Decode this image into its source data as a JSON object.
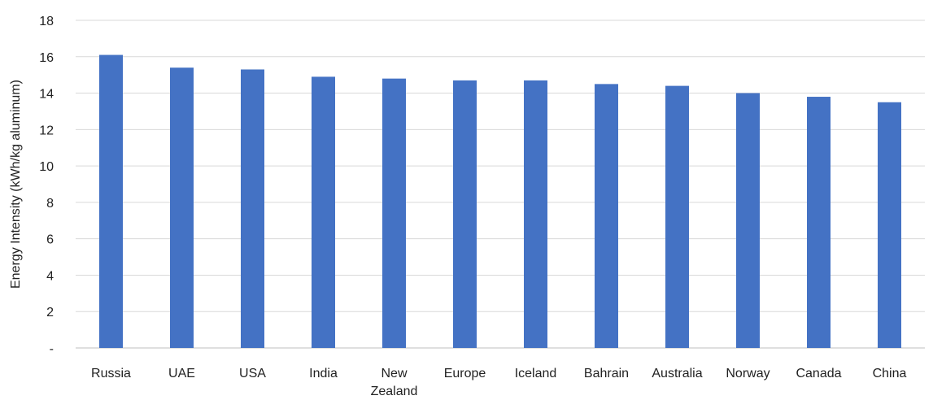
{
  "chart_data": {
    "type": "bar",
    "title": "",
    "xlabel": "",
    "ylabel": "Energy Intensity (kWh/kg aluminum)",
    "categories": [
      "Russia",
      "UAE",
      "USA",
      "India",
      "New Zealand",
      "Europe",
      "Iceland",
      "Bahrain",
      "Australia",
      "Norway",
      "Canada",
      "China"
    ],
    "category_lines": [
      [
        "Russia"
      ],
      [
        "UAE"
      ],
      [
        "USA"
      ],
      [
        "India"
      ],
      [
        "New",
        "Zealand"
      ],
      [
        "Europe"
      ],
      [
        "Iceland"
      ],
      [
        "Bahrain"
      ],
      [
        "Australia"
      ],
      [
        "Norway"
      ],
      [
        "Canada"
      ],
      [
        "China"
      ]
    ],
    "values": [
      16.1,
      15.4,
      15.3,
      14.9,
      14.8,
      14.7,
      14.7,
      14.5,
      14.4,
      14.0,
      13.8,
      13.5
    ],
    "ylim": [
      0,
      18
    ],
    "yticks": [
      0,
      2,
      4,
      6,
      8,
      10,
      12,
      14,
      16,
      18
    ],
    "ytick_labels": [
      "-",
      "2",
      "4",
      "6",
      "8",
      "10",
      "12",
      "14",
      "16",
      "18"
    ],
    "grid": true,
    "legend": "none",
    "bar_color": "#4472C4"
  }
}
